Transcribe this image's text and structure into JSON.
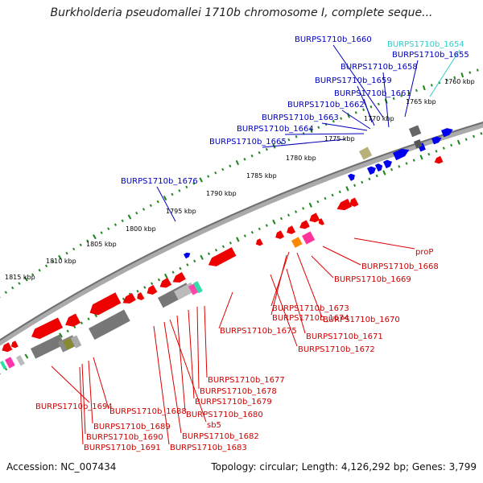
{
  "title": "Burkholderia pseudomallei 1710b chromosome I, complete seque...",
  "accession": "Accession: NC_007434",
  "topology": "Topology: circular; Length: 4,126,292 bp; Genes: 3,799",
  "colors": {
    "plus_label": "#0000bb",
    "highlight_label": "#33cccc",
    "minus_label": "#cc0000",
    "scale_dots": "#228822",
    "backbone": "#888888"
  },
  "scale_ticks": [
    "1760 kbp",
    "1765 kbp",
    "1770 kbp",
    "1775 kbp",
    "1780 kbp",
    "1785 kbp",
    "1790 kbp",
    "1795 kbp",
    "1800 kbp",
    "1805 kbp",
    "1810 kbp",
    "1815 kbp"
  ],
  "plus_labels": [
    "BURPS1710b_1660",
    "BURPS1710b_1654",
    "BURPS1710b_1655",
    "BURPS1710b_1658",
    "BURPS1710b_1659",
    "BURPS1710b_1661",
    "BURPS1710b_1662",
    "BURPS1710b_1663",
    "BURPS1710b_1664",
    "BURPS1710b_1665",
    "BURPS1710b_1676"
  ],
  "minus_labels": [
    "proP",
    "BURPS1710b_1668",
    "BURPS1710b_1669",
    "BURPS1710b_1670",
    "BURPS1710b_1673",
    "BURPS1710b_1674",
    "BURPS1710b_1671",
    "BURPS1710b_1672",
    "BURPS1710b_1675",
    "BURPS1710b_1677",
    "BURPS1710b_1678",
    "BURPS1710b_1679",
    "BURPS1710b_1680",
    "sb5",
    "BURPS1710b_1682",
    "BURPS1710b_1683",
    "BURPS1710b_1694",
    "BURPS1710b_1688",
    "BURPS1710b_1689",
    "BURPS1710b_1690",
    "BURPS1710b_1691"
  ]
}
